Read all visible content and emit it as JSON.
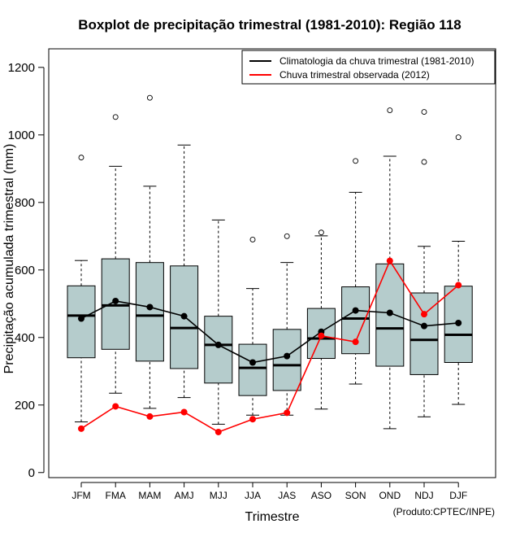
{
  "chart_data": {
    "type": "boxplot",
    "title": "Boxplot de precipitação trimestral (1981-2010): Região 118",
    "xlabel": "Trimestre",
    "ylabel": "Precipitação acumulada trimestral (mm)",
    "credit": "(Produto:CPTEC/INPE)",
    "ylim": [
      -15,
      1255
    ],
    "yticks": [
      0,
      200,
      400,
      600,
      800,
      1000,
      1200
    ],
    "categories": [
      "JFM",
      "FMA",
      "MAM",
      "AMJ",
      "MJJ",
      "JJA",
      "JAS",
      "ASO",
      "SON",
      "OND",
      "NDJ",
      "DJF"
    ],
    "boxes": [
      {
        "whisker_low": 150,
        "q1": 340,
        "median": 465,
        "q3": 553,
        "whisker_high": 628,
        "outliers": [
          933
        ]
      },
      {
        "whisker_low": 235,
        "q1": 365,
        "median": 495,
        "q3": 633,
        "whisker_high": 907,
        "outliers": [
          1053
        ]
      },
      {
        "whisker_low": 190,
        "q1": 330,
        "median": 465,
        "q3": 622,
        "whisker_high": 848,
        "outliers": [
          1110
        ]
      },
      {
        "whisker_low": 222,
        "q1": 308,
        "median": 428,
        "q3": 612,
        "whisker_high": 970,
        "outliers": []
      },
      {
        "whisker_low": 143,
        "q1": 265,
        "median": 378,
        "q3": 463,
        "whisker_high": 748,
        "outliers": []
      },
      {
        "whisker_low": 170,
        "q1": 228,
        "median": 310,
        "q3": 380,
        "whisker_high": 545,
        "outliers": [
          690
        ]
      },
      {
        "whisker_low": 170,
        "q1": 243,
        "median": 318,
        "q3": 424,
        "whisker_high": 622,
        "outliers": [
          700
        ]
      },
      {
        "whisker_low": 188,
        "q1": 338,
        "median": 397,
        "q3": 486,
        "whisker_high": 701,
        "outliers": [
          711
        ]
      },
      {
        "whisker_low": 262,
        "q1": 352,
        "median": 456,
        "q3": 550,
        "whisker_high": 830,
        "outliers": [
          923
        ]
      },
      {
        "whisker_low": 130,
        "q1": 315,
        "median": 427,
        "q3": 618,
        "whisker_high": 937,
        "outliers": [
          1073
        ]
      },
      {
        "whisker_low": 165,
        "q1": 290,
        "median": 393,
        "q3": 532,
        "whisker_high": 670,
        "outliers": [
          920,
          1068
        ]
      },
      {
        "whisker_low": 202,
        "q1": 326,
        "median": 408,
        "q3": 552,
        "whisker_high": 685,
        "outliers": [
          993
        ]
      }
    ],
    "series": [
      {
        "name": "Climatologia da chuva trimestral (1981-2010)",
        "color": "#000000",
        "values": [
          456,
          508,
          490,
          463,
          378,
          326,
          345,
          417,
          480,
          473,
          434,
          443
        ]
      },
      {
        "name": "Chuva trimestral observada (2012)",
        "color": "#ff0000",
        "values": [
          130,
          196,
          166,
          179,
          120,
          158,
          177,
          405,
          387,
          627,
          469,
          555
        ]
      }
    ],
    "box_fill": "#b5cccc",
    "legend_position": "top-right"
  }
}
